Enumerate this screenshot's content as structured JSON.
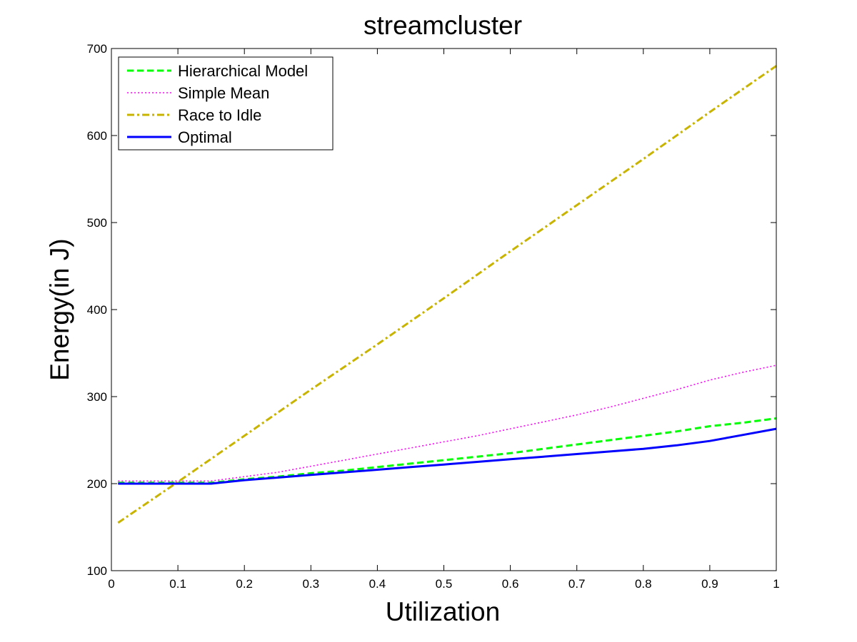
{
  "chart_data": {
    "type": "line",
    "title": "streamcluster",
    "xlabel": "Utilization",
    "ylabel": "Energy(in J)",
    "xlim": [
      0,
      1
    ],
    "ylim": [
      100,
      700
    ],
    "xticks": [
      "0",
      "0.1",
      "0.2",
      "0.3",
      "0.4",
      "0.5",
      "0.6",
      "0.7",
      "0.8",
      "0.9",
      "1"
    ],
    "yticks": [
      "100",
      "200",
      "300",
      "400",
      "500",
      "600",
      "700"
    ],
    "grid": false,
    "legend_position": "top-left",
    "series": [
      {
        "name": "Hierarchical Model",
        "color": "#00ff00",
        "style": "dashed",
        "x": [
          0.01,
          0.05,
          0.1,
          0.15,
          0.2,
          0.25,
          0.3,
          0.35,
          0.4,
          0.45,
          0.5,
          0.55,
          0.6,
          0.65,
          0.7,
          0.75,
          0.8,
          0.85,
          0.9,
          0.95,
          1.0
        ],
        "y": [
          201,
          201,
          201,
          201,
          205,
          208,
          212,
          215,
          219,
          223,
          227,
          231,
          235,
          240,
          245,
          250,
          255,
          260,
          266,
          270,
          275
        ]
      },
      {
        "name": "Simple Mean",
        "color": "#ff00ff",
        "style": "dotted",
        "x": [
          0.01,
          0.05,
          0.1,
          0.15,
          0.2,
          0.25,
          0.3,
          0.35,
          0.4,
          0.45,
          0.5,
          0.55,
          0.6,
          0.65,
          0.7,
          0.75,
          0.8,
          0.85,
          0.9,
          0.95,
          1.0
        ],
        "y": [
          203,
          203,
          203,
          203,
          208,
          213,
          220,
          227,
          234,
          241,
          248,
          255,
          263,
          271,
          279,
          288,
          298,
          308,
          319,
          328,
          336
        ]
      },
      {
        "name": "Race to Idle",
        "color": "#c8b400",
        "style": "dashdot",
        "x": [
          0.01,
          0.1,
          0.2,
          0.3,
          0.4,
          0.5,
          0.6,
          0.7,
          0.8,
          0.9,
          1.0
        ],
        "y": [
          155,
          202,
          255,
          308,
          360,
          413,
          467,
          520,
          573,
          627,
          680
        ]
      },
      {
        "name": "Optimal",
        "color": "#0000ff",
        "style": "solid",
        "x": [
          0.01,
          0.05,
          0.1,
          0.15,
          0.2,
          0.25,
          0.3,
          0.35,
          0.4,
          0.45,
          0.5,
          0.55,
          0.6,
          0.65,
          0.7,
          0.75,
          0.8,
          0.85,
          0.9,
          0.95,
          1.0
        ],
        "y": [
          200,
          200,
          200,
          200,
          204,
          207,
          210,
          213,
          216,
          219,
          222,
          225,
          228,
          231,
          234,
          237,
          240,
          244,
          249,
          256,
          263
        ]
      }
    ]
  }
}
